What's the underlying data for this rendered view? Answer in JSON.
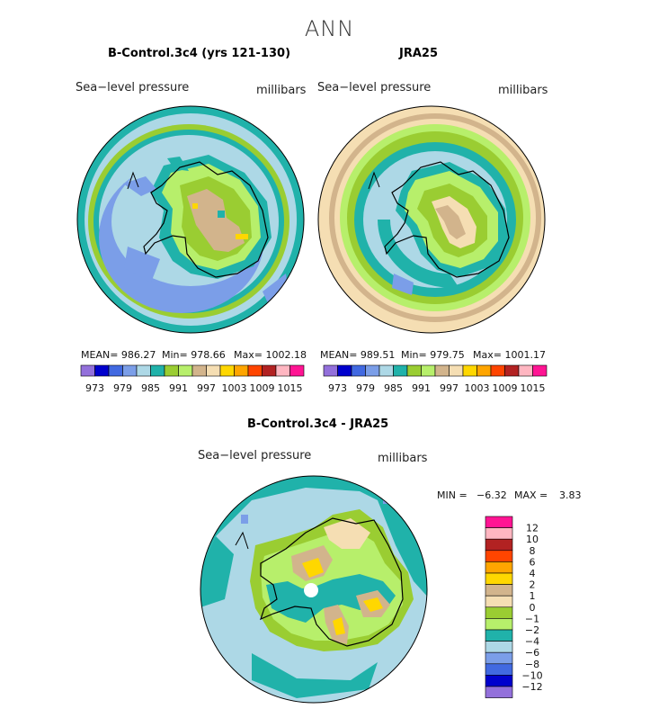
{
  "figure": {
    "title": "ANN"
  },
  "panels": [
    {
      "title": "B-Control.3c4 (yrs 121-130)",
      "variable": "Sea−level pressure",
      "units": "millibars",
      "stats": {
        "mean_label": "MEAN= 986.27",
        "min_label": "Min= 978.66",
        "max_label": "Max= 1002.18"
      },
      "colorbar": {
        "colors": [
          "#9370db",
          "#0000cd",
          "#4169e1",
          "#7b9ee8",
          "#add8e6",
          "#20b2aa",
          "#9acd32",
          "#b7ef6b",
          "#d2b48c",
          "#f5deb3",
          "#ffd700",
          "#ffa500",
          "#ff4500",
          "#b22222",
          "#ffb6c1",
          "#ff1493"
        ],
        "tick_labels": [
          "973",
          "979",
          "985",
          "991",
          "997",
          "1003",
          "1009",
          "1015"
        ]
      }
    },
    {
      "title": "JRA25",
      "variable": "Sea−level pressure",
      "units": "millibars",
      "stats": {
        "mean_label": "MEAN= 989.51",
        "min_label": "Min= 979.75",
        "max_label": "Max= 1001.17"
      },
      "colorbar": {
        "colors": [
          "#9370db",
          "#0000cd",
          "#4169e1",
          "#7b9ee8",
          "#add8e6",
          "#20b2aa",
          "#9acd32",
          "#b7ef6b",
          "#d2b48c",
          "#f5deb3",
          "#ffd700",
          "#ffa500",
          "#ff4500",
          "#b22222",
          "#ffb6c1",
          "#ff1493"
        ],
        "tick_labels": [
          "973",
          "979",
          "985",
          "991",
          "997",
          "1003",
          "1009",
          "1015"
        ]
      }
    }
  ],
  "diff_panel": {
    "title": "B-Control.3c4 - JRA25",
    "variable": "Sea−level pressure",
    "units": "millibars",
    "min_label": "MIN =",
    "min_value": "−6.32",
    "max_label": "MAX =",
    "max_value": "3.83",
    "colorbar": {
      "colors": [
        "#ff1493",
        "#ffb6c1",
        "#b22222",
        "#ff4500",
        "#ffa500",
        "#ffd700",
        "#d2b48c",
        "#f5deb3",
        "#9acd32",
        "#b7ef6b",
        "#20b2aa",
        "#add8e6",
        "#7b9ee8",
        "#4169e1",
        "#0000cd",
        "#9370db"
      ],
      "tick_labels": [
        "12",
        "10",
        "8",
        "6",
        "4",
        "2",
        "1",
        "0",
        "−1",
        "−2",
        "−4",
        "−6",
        "−8",
        "−10",
        "−12"
      ]
    }
  }
}
